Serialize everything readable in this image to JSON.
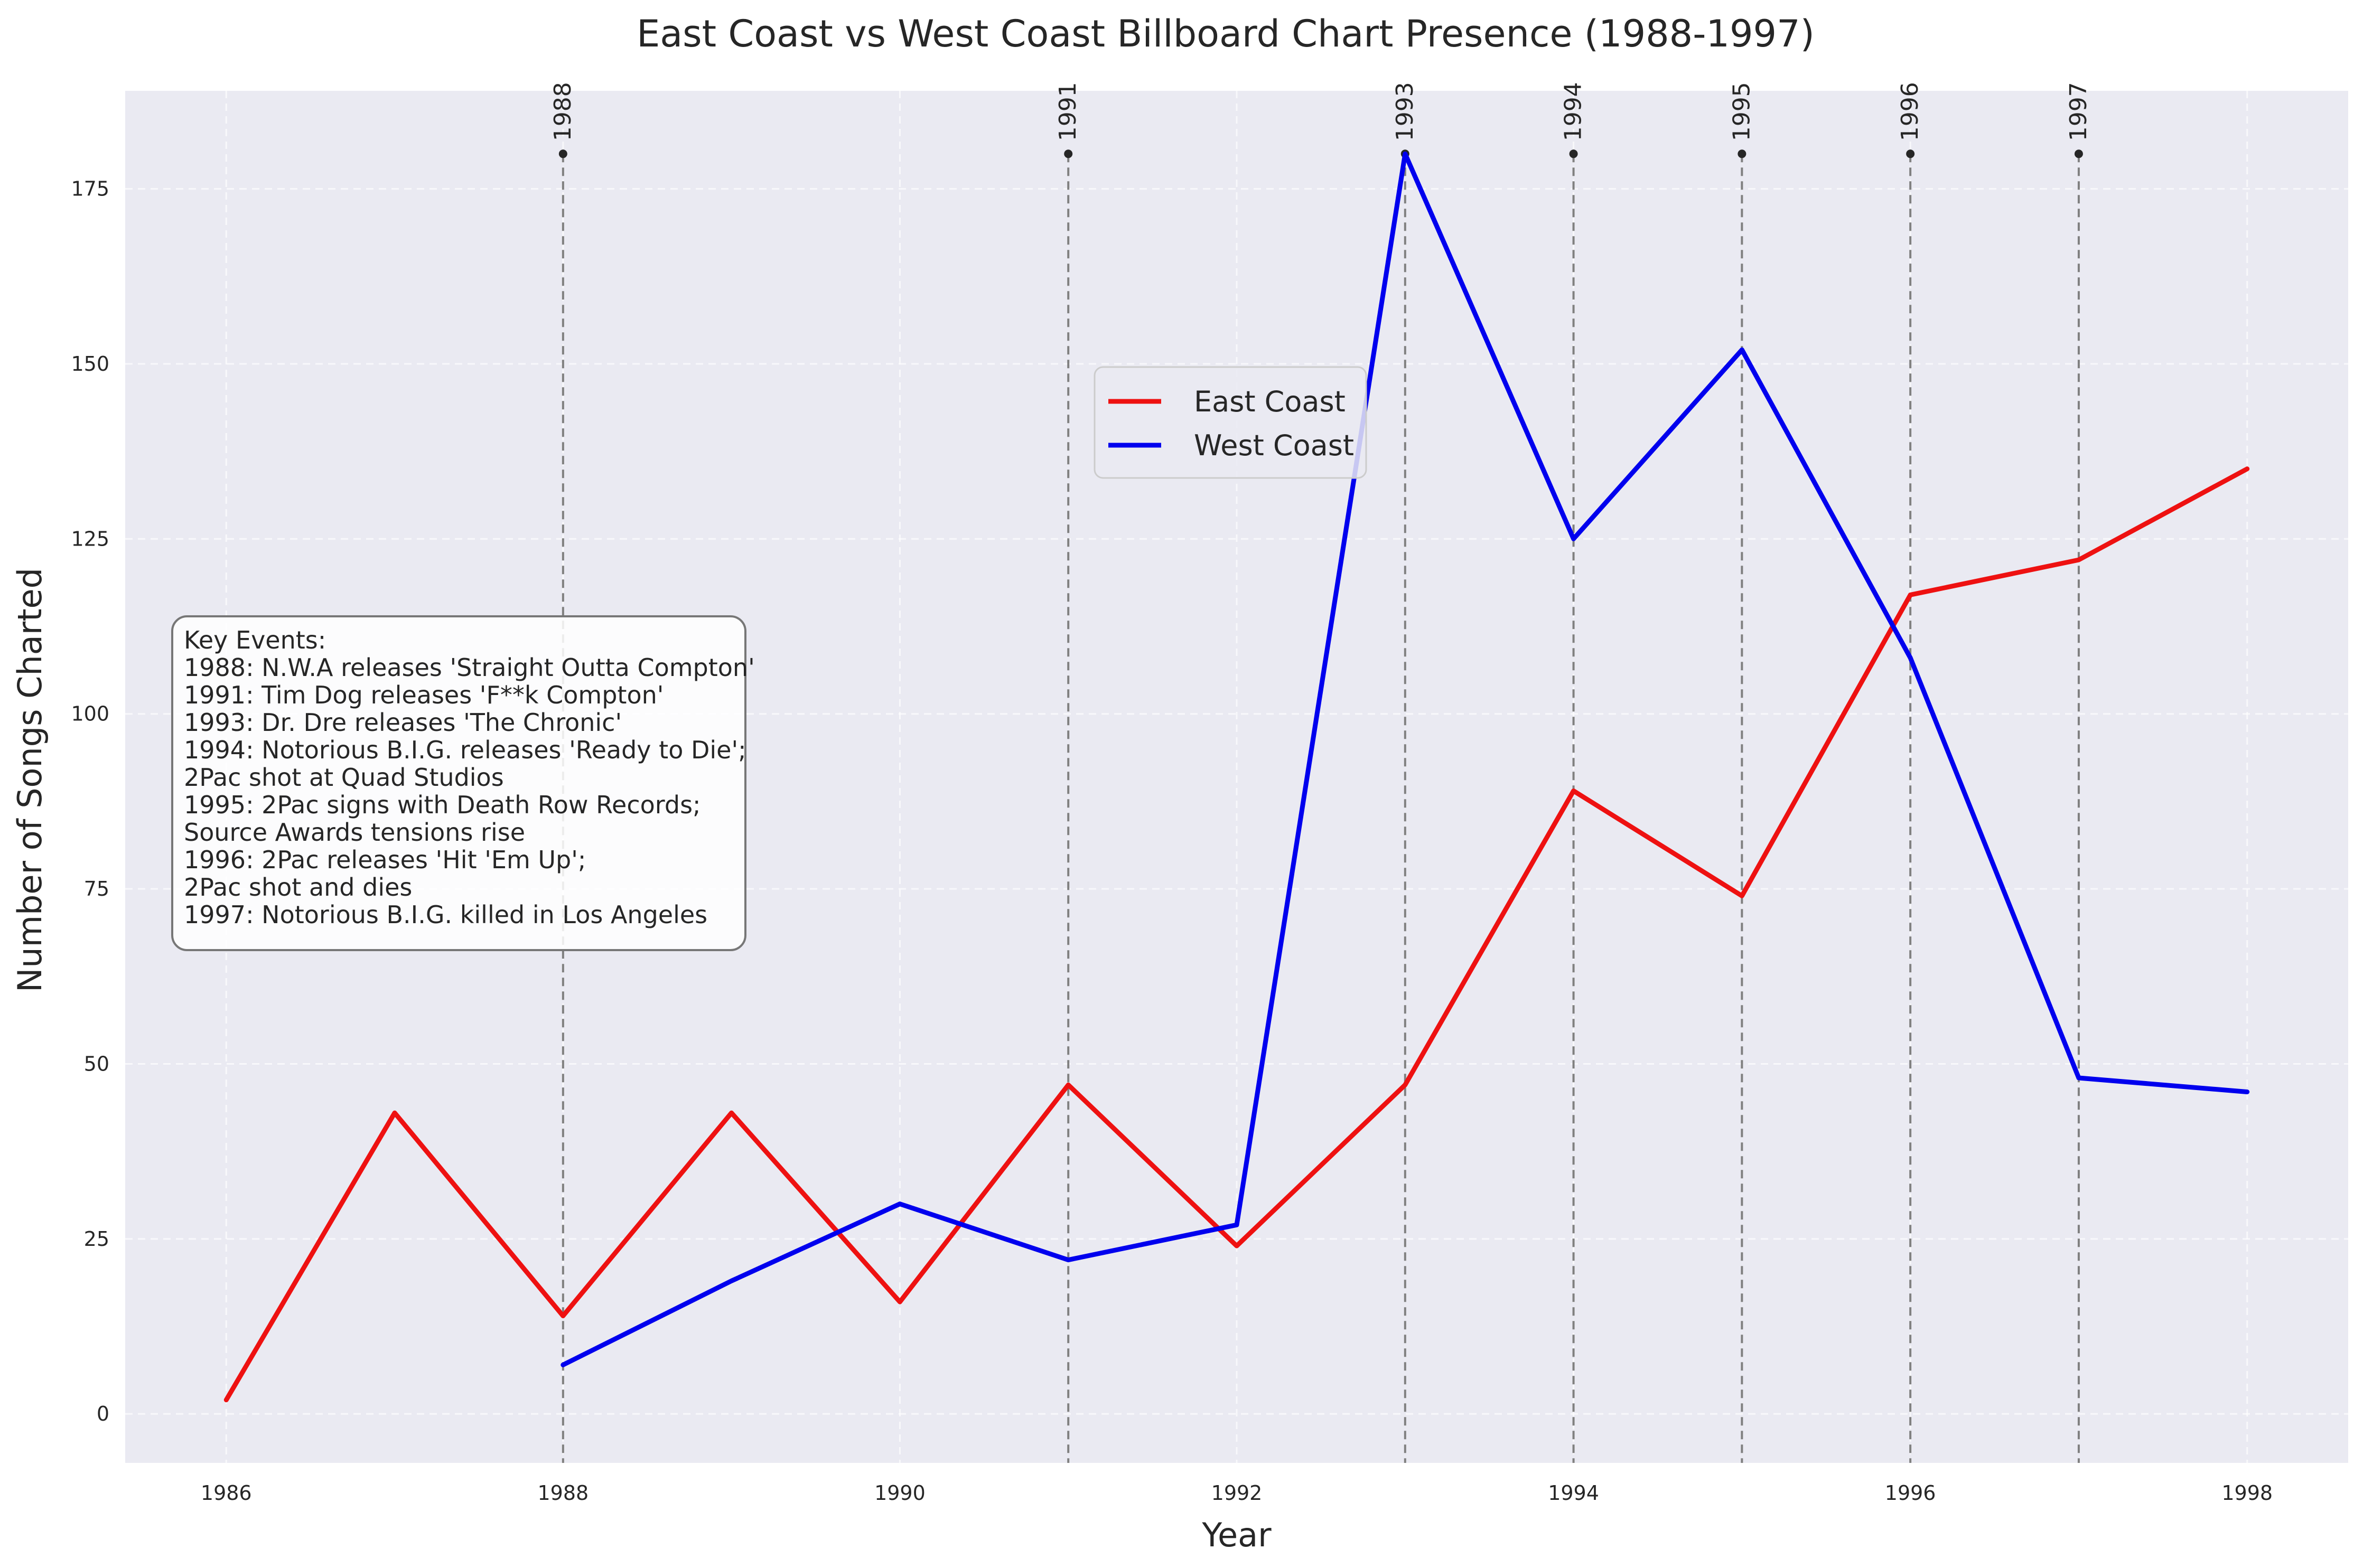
{
  "chart_data": {
    "type": "line",
    "title": "East Coast vs West Coast Billboard Chart Presence (1988-1997)",
    "xlabel": "Year",
    "ylabel": "Number of Songs Charted",
    "xlim": [
      1985.4,
      1998.6
    ],
    "ylim": [
      -7,
      189
    ],
    "xticks": [
      1986,
      1988,
      1990,
      1992,
      1994,
      1996,
      1998
    ],
    "yticks": [
      0,
      25,
      50,
      75,
      100,
      125,
      150,
      175
    ],
    "series": [
      {
        "name": "East Coast",
        "color": "#ee1111",
        "x": [
          1986,
          1987,
          1988,
          1989,
          1990,
          1991,
          1992,
          1993,
          1994,
          1995,
          1996,
          1997,
          1998
        ],
        "y": [
          2,
          43,
          14,
          43,
          16,
          47,
          24,
          47,
          89,
          74,
          117,
          122,
          135
        ]
      },
      {
        "name": "West Coast",
        "color": "#0000ee",
        "x": [
          1988,
          1989,
          1990,
          1991,
          1992,
          1993,
          1994,
          1995,
          1996,
          1997,
          1998
        ],
        "y": [
          7,
          19,
          30,
          22,
          27,
          180,
          125,
          152,
          108,
          48,
          46
        ]
      }
    ],
    "event_lines": [
      {
        "year": 1988,
        "label": "1988"
      },
      {
        "year": 1991,
        "label": "1991"
      },
      {
        "year": 1993,
        "label": "1993"
      },
      {
        "year": 1994,
        "label": "1994"
      },
      {
        "year": 1995,
        "label": "1995"
      },
      {
        "year": 1996,
        "label": "1996"
      },
      {
        "year": 1997,
        "label": "1997"
      }
    ],
    "event_marker_value": 180,
    "legend_position": "upper-center",
    "annotation_lines": [
      "Key Events:",
      "1988: N.W.A releases 'Straight Outta Compton'",
      "1991: Tim Dog releases 'F**k Compton'",
      "1993: Dr. Dre releases 'The Chronic'",
      "1994: Notorious B.I.G. releases 'Ready to Die';",
      "2Pac shot at Quad Studios",
      "1995: 2Pac signs with Death Row Records;",
      "Source Awards tensions rise",
      "1996: 2Pac releases 'Hit 'Em Up';",
      "2Pac shot and dies",
      "1997: Notorious B.I.G. killed in Los Angeles"
    ],
    "background_color": "#eaeaf2",
    "grid": true
  }
}
